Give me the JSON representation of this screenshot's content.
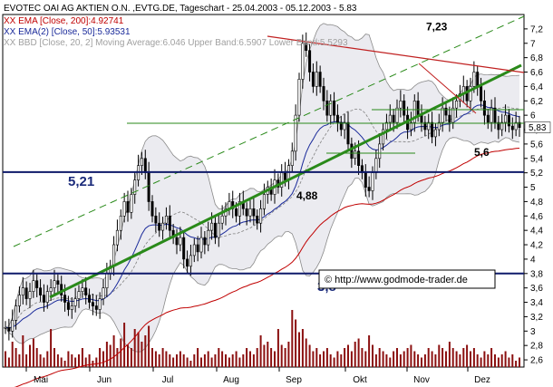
{
  "title": "EVOTEC OAI AG AKTIEN O.N. ,EVTG.DE, Tageschart - 25.04.2003 - 05.12.2003 - 5.83",
  "legend": [
    {
      "prefix": "XX",
      "text": "EMA [Close, 200]:4.92741",
      "color": "#c00000"
    },
    {
      "prefix": "XX",
      "text": "EMA(2) [Close, 50]:5.93531",
      "color": "#1a2a9a"
    },
    {
      "prefix": "XX",
      "text": "BBD [Close, 20, 2] Moving Average:6.046 Upper Band:6.5907 Lower Band:5.5293",
      "color": "#a0a0a0"
    }
  ],
  "source_label": "© http://www.godmode-trader.de",
  "colors": {
    "candle": "#000000",
    "volume": "#8b1010",
    "ema200": "#c00000",
    "ema50": "#1a2a9a",
    "bollinger_fill": "#ebebf0",
    "bollinger_band": "#8a8a8a",
    "trend_green": "#2a8a1a",
    "support": "#0f1a6a",
    "resistance": "#c02020",
    "last_price_box": "#ffffff"
  },
  "chart_data": {
    "type": "candlestick",
    "ylim": [
      2.5,
      7.4
    ],
    "y_ticks": [
      "2,6",
      "2,8",
      "3",
      "3,2",
      "3,4",
      "3,6",
      "3,8",
      "4",
      "4,2",
      "4,4",
      "4,6",
      "4,8",
      "5",
      "5,2",
      "5,4",
      "5,6",
      "5,8",
      "6",
      "6,2",
      "6,4",
      "6,6",
      "6,8",
      "7",
      "7,2"
    ],
    "y_tick_values": [
      2.6,
      2.8,
      3.0,
      3.2,
      3.4,
      3.6,
      3.8,
      4.0,
      4.2,
      4.4,
      4.6,
      4.8,
      5.0,
      5.2,
      5.4,
      5.6,
      5.8,
      6.0,
      6.2,
      6.4,
      6.6,
      6.8,
      7.0,
      7.2
    ],
    "months": [
      "Mai",
      "Jun",
      "Jul",
      "Aug",
      "Sep",
      "Okt",
      "Nov",
      "Dez"
    ],
    "last_price_label": "5,83",
    "last_price": 5.83,
    "horizontal_levels": [
      {
        "label": "5,21",
        "value": 5.21
      },
      {
        "label": "3,8",
        "value": 3.8
      }
    ],
    "annotations": [
      {
        "label": "7,23",
        "value": 7.23
      },
      {
        "label": "4,88",
        "value": 4.88
      },
      {
        "label": "5,6",
        "value": 5.6
      }
    ],
    "close": [
      3.05,
      3.0,
      3.15,
      3.35,
      3.5,
      3.6,
      3.45,
      3.55,
      3.7,
      3.6,
      3.5,
      3.4,
      3.55,
      3.6,
      3.7,
      3.65,
      3.5,
      3.4,
      3.3,
      3.35,
      3.45,
      3.55,
      3.6,
      3.5,
      3.4,
      3.35,
      3.3,
      3.45,
      3.6,
      3.8,
      3.9,
      4.2,
      4.4,
      4.6,
      4.8,
      4.65,
      4.9,
      5.1,
      5.3,
      5.4,
      5.2,
      4.8,
      4.6,
      4.5,
      4.4,
      4.5,
      4.6,
      4.4,
      4.3,
      4.2,
      4.3,
      4.0,
      3.9,
      4.05,
      4.2,
      4.1,
      4.3,
      4.2,
      4.4,
      4.5,
      4.3,
      4.5,
      4.6,
      4.7,
      4.8,
      4.7,
      4.6,
      4.8,
      4.7,
      4.6,
      4.7,
      4.6,
      4.5,
      4.7,
      4.9,
      5.0,
      4.9,
      5.1,
      5.0,
      5.2,
      5.1,
      5.3,
      5.5,
      6.0,
      6.5,
      7.0,
      6.9,
      6.6,
      6.4,
      6.6,
      6.4,
      6.2,
      6.0,
      6.2,
      6.0,
      5.9,
      5.8,
      5.9,
      5.6,
      5.4,
      5.5,
      5.3,
      5.2,
      5.0,
      4.95,
      5.2,
      5.4,
      5.6,
      5.8,
      5.9,
      6.0,
      5.9,
      6.1,
      6.2,
      6.0,
      5.8,
      5.9,
      6.2,
      6.0,
      5.9,
      5.8,
      5.9,
      5.7,
      5.8,
      5.9,
      6.1,
      6.0,
      5.9,
      6.1,
      6.2,
      6.3,
      6.4,
      6.2,
      6.4,
      6.6,
      6.4,
      6.2,
      6.0,
      5.9,
      6.1,
      5.9,
      5.8,
      5.9,
      6.0,
      5.85,
      5.8,
      5.9,
      5.83
    ],
    "volume": [
      0.25,
      0.15,
      0.4,
      0.3,
      0.2,
      0.5,
      0.2,
      0.35,
      0.45,
      0.3,
      0.2,
      0.15,
      0.25,
      0.6,
      0.3,
      0.2,
      0.15,
      0.1,
      0.25,
      0.2,
      0.15,
      0.2,
      0.3,
      0.15,
      0.2,
      0.1,
      0.15,
      0.3,
      0.25,
      0.4,
      0.35,
      0.5,
      0.3,
      0.45,
      0.7,
      0.35,
      0.3,
      0.6,
      0.55,
      0.4,
      0.5,
      0.65,
      0.3,
      0.25,
      0.2,
      0.3,
      0.25,
      0.2,
      0.15,
      0.2,
      0.25,
      0.2,
      0.15,
      0.1,
      0.2,
      0.3,
      0.15,
      0.2,
      0.25,
      0.15,
      0.2,
      0.3,
      0.25,
      0.2,
      0.15,
      0.2,
      0.25,
      0.15,
      0.2,
      0.3,
      0.25,
      0.2,
      0.3,
      0.5,
      0.35,
      0.4,
      0.3,
      0.25,
      0.6,
      0.35,
      0.3,
      0.4,
      0.9,
      0.75,
      0.55,
      0.6,
      0.45,
      0.35,
      0.25,
      0.3,
      0.2,
      0.25,
      0.3,
      0.2,
      0.15,
      0.25,
      0.2,
      0.3,
      0.35,
      0.25,
      0.4,
      0.45,
      0.3,
      0.25,
      0.5,
      0.35,
      0.2,
      0.3,
      0.25,
      0.2,
      0.15,
      0.25,
      0.3,
      0.2,
      0.25,
      0.3,
      0.35,
      0.25,
      0.2,
      0.15,
      0.2,
      0.3,
      0.25,
      0.2,
      0.35,
      0.3,
      0.25,
      0.4,
      0.3,
      0.25,
      0.2,
      0.3,
      0.35,
      0.25,
      0.3,
      0.2,
      0.15,
      0.25,
      0.2,
      0.3,
      0.2,
      0.15,
      0.2,
      0.25,
      0.15,
      0.2,
      0.1,
      0.15
    ]
  }
}
